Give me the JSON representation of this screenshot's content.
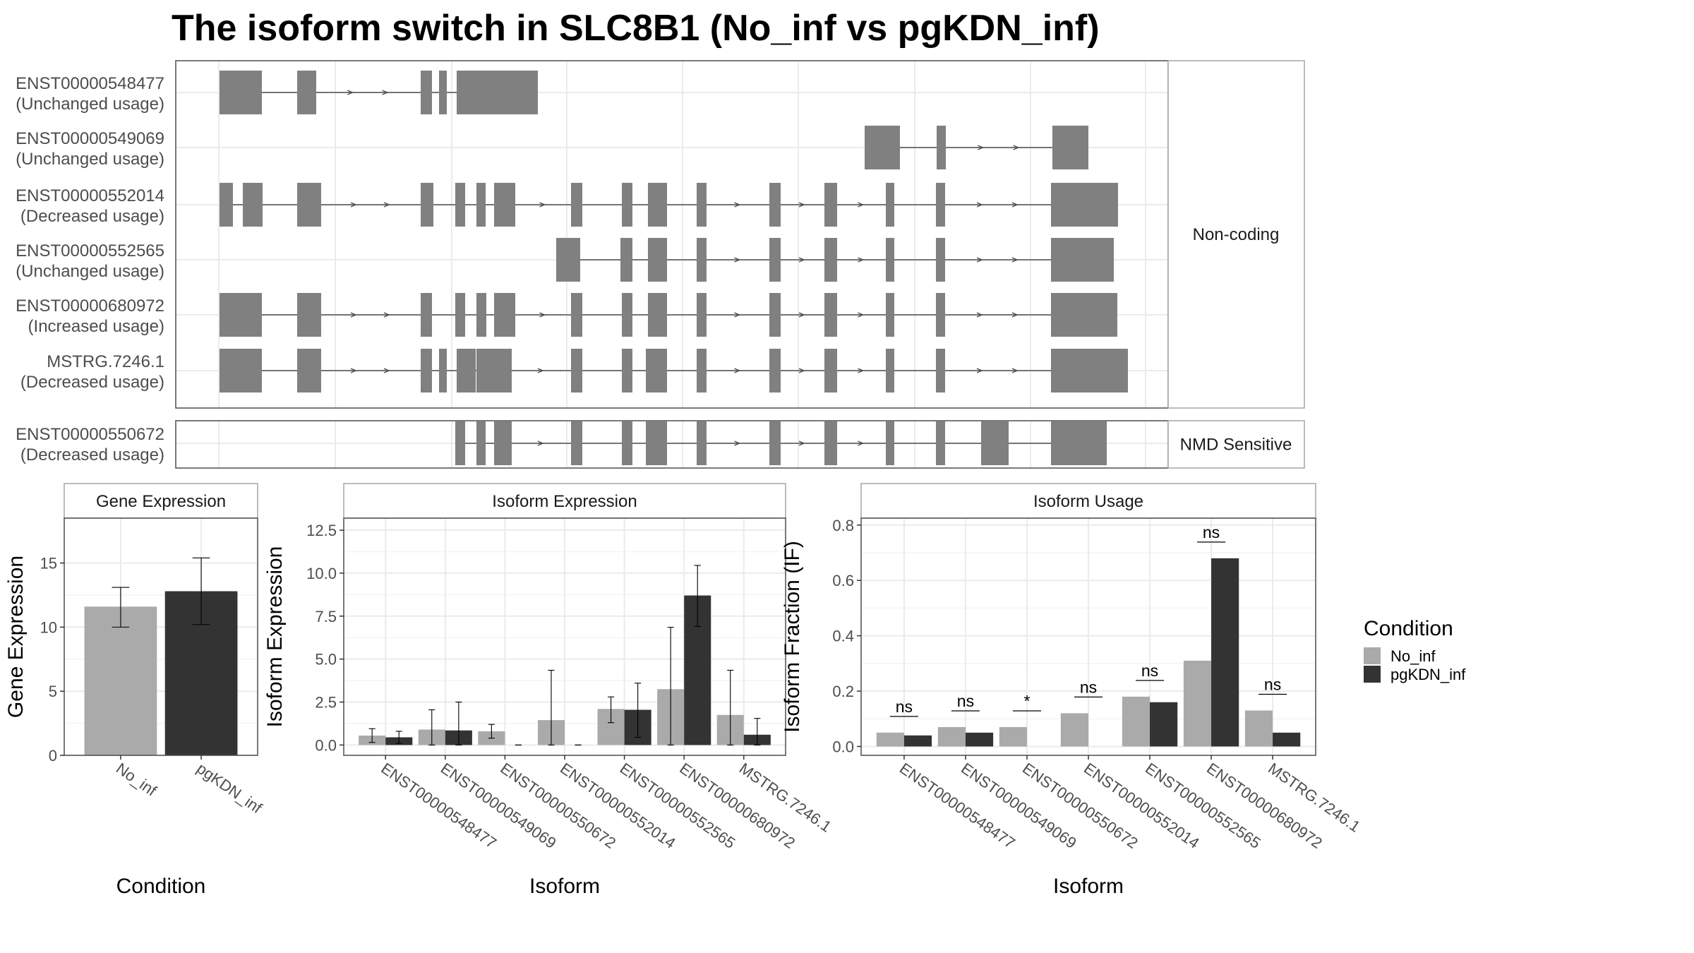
{
  "title": "The isoform switch in SLC8B1 (No_inf vs pgKDN_inf)",
  "colors": {
    "exon": "#808080",
    "intron": "#4d4d4d",
    "no_inf": "#aaaaaa",
    "pgkdn_inf": "#333333",
    "grid": "#ebebeb",
    "panel_border": "#4d4d4d",
    "strip_border": "#a6a6a6"
  },
  "structure": {
    "groups": [
      {
        "label": "Non-coding",
        "isoforms": [
          {
            "id": "ENST00000548477",
            "usage": "(Unchanged usage)"
          },
          {
            "id": "ENST00000549069",
            "usage": "(Unchanged usage)"
          },
          {
            "id": "ENST00000552014",
            "usage": "(Decreased usage)"
          },
          {
            "id": "ENST00000552565",
            "usage": "(Unchanged usage)"
          },
          {
            "id": "ENST00000680972",
            "usage": "(Increased usage)"
          },
          {
            "id": "MSTRG.7246.1",
            "usage": "(Decreased usage)"
          }
        ]
      },
      {
        "label": "NMD Sensitive",
        "isoforms": [
          {
            "id": "ENST00000550672",
            "usage": "(Decreased usage)"
          }
        ]
      }
    ]
  },
  "chart_data": [
    {
      "type": "bar",
      "title": "Gene Expression",
      "xlabel": "Condition",
      "ylabel": "Gene Expression",
      "categories": [
        "No_inf",
        "pgKDN_inf"
      ],
      "ylim": [
        0,
        18.5
      ],
      "yticks": [
        0,
        5,
        10,
        15
      ],
      "tick_labels": [
        "0",
        "5",
        "10",
        "15"
      ],
      "series": [
        {
          "values": [
            11.6,
            12.8
          ],
          "err_low": [
            10.0,
            10.2
          ],
          "err_high": [
            13.1,
            15.4
          ]
        }
      ]
    },
    {
      "type": "bar",
      "title": "Isoform Expression",
      "xlabel": "Isoform",
      "ylabel": "Isoform Expression",
      "categories": [
        "ENST00000548477",
        "ENST00000549069",
        "ENST00000550672",
        "ENST00000552014",
        "ENST00000552565",
        "ENST00000680972",
        "MSTRG.7246.1"
      ],
      "ylim": [
        -0.6,
        13.2
      ],
      "yticks": [
        0,
        2.5,
        5,
        7.5,
        10,
        12.5
      ],
      "tick_labels": [
        "0.0",
        "2.5",
        "5.0",
        "7.5",
        "10.0",
        "12.5"
      ],
      "series": [
        {
          "name": "No_inf",
          "values": [
            0.55,
            0.9,
            0.8,
            1.45,
            2.1,
            3.25,
            1.75
          ],
          "err_low": [
            0.15,
            0.0,
            0.4,
            0.0,
            1.3,
            0.0,
            0.0
          ],
          "err_high": [
            0.95,
            2.05,
            1.2,
            4.35,
            2.8,
            6.85,
            4.35
          ]
        },
        {
          "name": "pgKDN_inf",
          "values": [
            0.45,
            0.85,
            0.0,
            0.0,
            2.05,
            8.7,
            0.6
          ],
          "err_low": [
            0.1,
            0.0,
            0.0,
            0.0,
            0.45,
            6.9,
            0.0
          ],
          "err_high": [
            0.8,
            2.5,
            0.0,
            0.0,
            3.6,
            10.45,
            1.55
          ]
        }
      ]
    },
    {
      "type": "bar",
      "title": "Isoform Usage",
      "xlabel": "Isoform",
      "ylabel": "Isoform Fraction (IF)",
      "categories": [
        "ENST00000548477",
        "ENST00000549069",
        "ENST00000550672",
        "ENST00000552014",
        "ENST00000552565",
        "ENST00000680972",
        "MSTRG.7246.1"
      ],
      "ylim": [
        -0.032,
        0.825
      ],
      "yticks": [
        0,
        0.2,
        0.4,
        0.6,
        0.8
      ],
      "tick_labels": [
        "0.0",
        "0.2",
        "0.4",
        "0.6",
        "0.8"
      ],
      "series": [
        {
          "name": "No_inf",
          "values": [
            0.05,
            0.07,
            0.07,
            0.12,
            0.18,
            0.31,
            0.13
          ]
        },
        {
          "name": "pgKDN_inf",
          "values": [
            0.04,
            0.05,
            0.0,
            0.0,
            0.16,
            0.68,
            0.05
          ]
        }
      ],
      "significance": [
        "ns",
        "ns",
        "*",
        "ns",
        "ns",
        "ns",
        "ns"
      ]
    }
  ],
  "legend": {
    "title": "Condition",
    "items": [
      {
        "label": "No_inf",
        "color_key": "no_inf"
      },
      {
        "label": "pgKDN_inf",
        "color_key": "pgkdn_inf"
      }
    ]
  }
}
